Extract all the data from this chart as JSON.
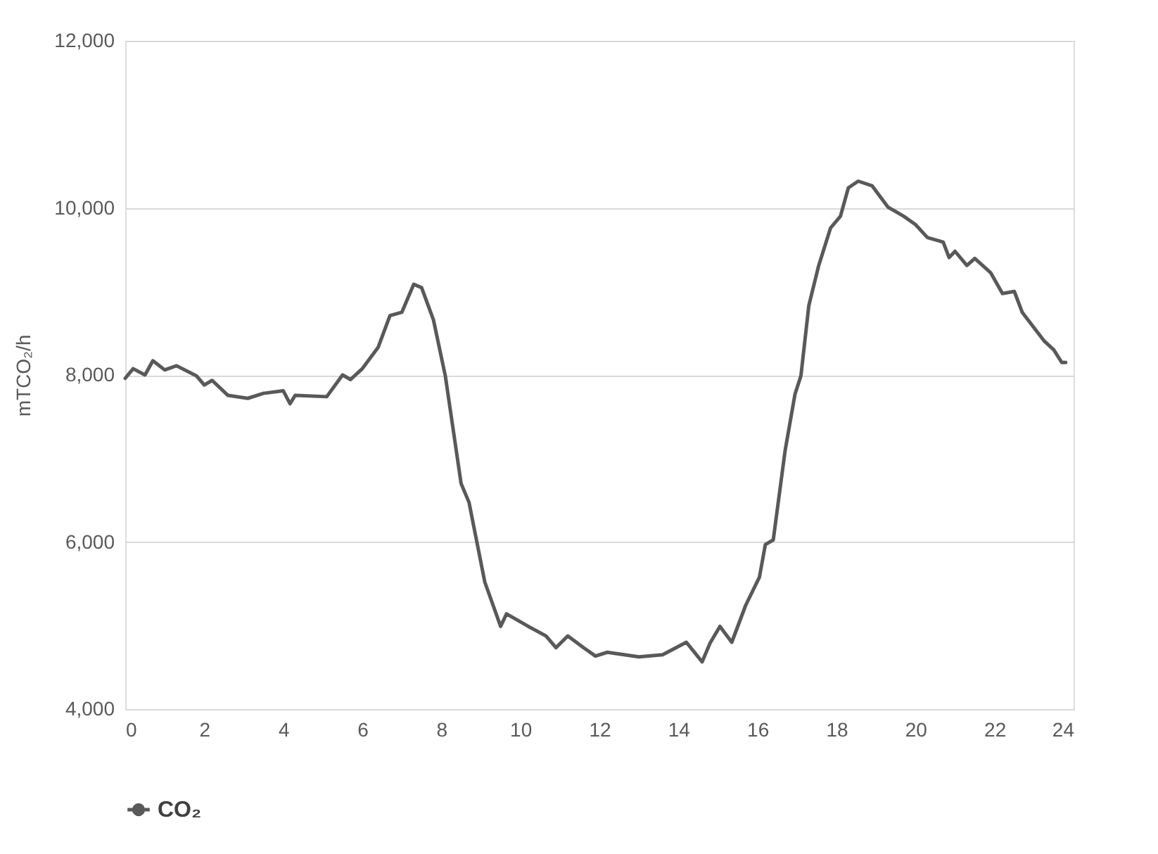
{
  "chart_data": {
    "type": "line",
    "ylabel": "mTCO₂/h",
    "xlim": [
      0,
      24
    ],
    "xticks": [
      0,
      2,
      4,
      6,
      8,
      10,
      12,
      14,
      16,
      18,
      20,
      22,
      24
    ],
    "ylim": [
      4000,
      12000
    ],
    "yticks": [
      {
        "value": 4000,
        "label": "4,000"
      },
      {
        "value": 6000,
        "label": "6,000"
      },
      {
        "value": 8000,
        "label": "8,000"
      },
      {
        "value": 10000,
        "label": "10,000"
      },
      {
        "value": 12000,
        "label": "12,000"
      }
    ],
    "grid": "y",
    "legend": "bottom",
    "line_style": "solid",
    "series": [
      {
        "name": "CO₂",
        "color": "#595959",
        "x": [
          0,
          0.2,
          0.5,
          0.7,
          1.0,
          1.3,
          1.8,
          2.0,
          2.2,
          2.6,
          3.1,
          3.5,
          4.0,
          4.17,
          4.3,
          5.1,
          5.5,
          5.7,
          6.0,
          6.4,
          6.7,
          7.0,
          7.3,
          7.5,
          7.8,
          8.1,
          8.5,
          8.7,
          9.1,
          9.5,
          9.65,
          10.2,
          10.65,
          10.9,
          11.2,
          11.6,
          11.9,
          12.2,
          13.0,
          13.6,
          14.2,
          14.6,
          14.8,
          15.05,
          15.35,
          15.7,
          16.05,
          16.2,
          16.4,
          16.7,
          16.95,
          17.1,
          17.3,
          17.55,
          17.85,
          18.1,
          18.3,
          18.55,
          18.9,
          19.3,
          19.7,
          20.0,
          20.3,
          20.7,
          20.85,
          21.0,
          21.3,
          21.5,
          21.9,
          22.2,
          22.5,
          22.7,
          23.25,
          23.5,
          23.7,
          23.8
        ],
        "values": [
          7960,
          8075,
          8000,
          8170,
          8060,
          8110,
          7990,
          7880,
          7935,
          7755,
          7720,
          7780,
          7810,
          7655,
          7755,
          7740,
          8000,
          7945,
          8075,
          8330,
          8710,
          8750,
          9085,
          9045,
          8660,
          7990,
          6700,
          6475,
          5520,
          4990,
          5140,
          4990,
          4875,
          4735,
          4875,
          4735,
          4635,
          4680,
          4625,
          4650,
          4800,
          4565,
          4790,
          4990,
          4800,
          5240,
          5580,
          5970,
          6025,
          7095,
          7770,
          7990,
          8830,
          9310,
          9760,
          9900,
          10240,
          10320,
          10265,
          10010,
          9900,
          9800,
          9645,
          9590,
          9405,
          9480,
          9310,
          9395,
          9225,
          8975,
          9000,
          8750,
          8410,
          8300,
          8150,
          8150
        ]
      }
    ]
  }
}
